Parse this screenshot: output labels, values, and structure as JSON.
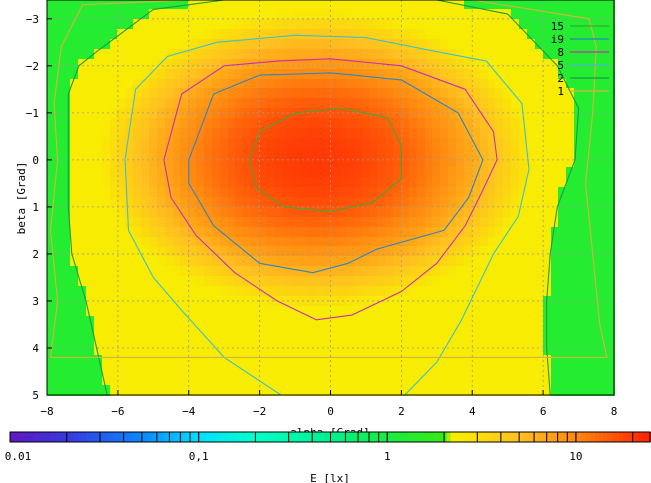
{
  "chart_data": {
    "type": "heatmap",
    "title": "",
    "xlabel": "alpha [Grad]",
    "ylabel": "beta [Grad]",
    "xlim": [
      -8,
      8
    ],
    "ylim": [
      -3.4,
      5
    ],
    "y_inverted": true,
    "x_ticks": [
      -8,
      -6,
      -4,
      -2,
      0,
      2,
      4,
      6,
      8
    ],
    "y_ticks": [
      -3,
      -2,
      -1,
      0,
      1,
      2,
      3,
      4,
      5
    ],
    "grid": true,
    "legend": {
      "position": "top-right",
      "title": ""
    },
    "contours": [
      {
        "level": "15",
        "color": "#43a637",
        "points": [
          [
            -2.3,
            0.0
          ],
          [
            -2.0,
            -0.6
          ],
          [
            -1.0,
            -1.0
          ],
          [
            0.3,
            -1.1
          ],
          [
            1.6,
            -0.9
          ],
          [
            2.0,
            -0.3
          ],
          [
            2.0,
            0.4
          ],
          [
            1.2,
            0.9
          ],
          [
            0.0,
            1.1
          ],
          [
            -1.3,
            1.0
          ],
          [
            -2.1,
            0.6
          ],
          [
            -2.3,
            0.0
          ]
        ]
      },
      {
        "level": "i9",
        "color": "#2f83c4",
        "points": [
          [
            -4.0,
            0.0
          ],
          [
            -3.3,
            -1.4
          ],
          [
            -2.0,
            -1.8
          ],
          [
            0.0,
            -1.85
          ],
          [
            2.0,
            -1.7
          ],
          [
            3.6,
            -1.0
          ],
          [
            4.3,
            0.0
          ],
          [
            3.9,
            0.8
          ],
          [
            3.2,
            1.5
          ],
          [
            1.3,
            1.9
          ],
          [
            0.5,
            2.2
          ],
          [
            -0.5,
            2.4
          ],
          [
            -2.0,
            2.2
          ],
          [
            -3.3,
            1.4
          ],
          [
            -4.0,
            0.5
          ],
          [
            -4.0,
            0.0
          ]
        ]
      },
      {
        "level": "8",
        "color": "#c82fb2",
        "points": [
          [
            -4.7,
            0.0
          ],
          [
            -4.2,
            -1.4
          ],
          [
            -3.0,
            -2.0
          ],
          [
            -1.5,
            -2.1
          ],
          [
            0.0,
            -2.15
          ],
          [
            2.0,
            -2.0
          ],
          [
            3.8,
            -1.5
          ],
          [
            4.6,
            -0.6
          ],
          [
            4.7,
            0.0
          ],
          [
            4.2,
            0.8
          ],
          [
            3.8,
            1.4
          ],
          [
            3.0,
            2.2
          ],
          [
            2.0,
            2.8
          ],
          [
            0.6,
            3.3
          ],
          [
            -0.4,
            3.4
          ],
          [
            -1.5,
            3.0
          ],
          [
            -2.7,
            2.4
          ],
          [
            -3.8,
            1.6
          ],
          [
            -4.5,
            0.8
          ],
          [
            -4.7,
            0.0
          ]
        ]
      },
      {
        "level": "5",
        "color": "#3fc0c8",
        "points": [
          [
            -5.8,
            0.0
          ],
          [
            -5.5,
            -1.5
          ],
          [
            -4.6,
            -2.2
          ],
          [
            -3.2,
            -2.5
          ],
          [
            -1.0,
            -2.65
          ],
          [
            1.0,
            -2.6
          ],
          [
            3.0,
            -2.3
          ],
          [
            4.4,
            -2.1
          ],
          [
            5.4,
            -1.2
          ],
          [
            5.6,
            0.2
          ],
          [
            5.3,
            1.2
          ],
          [
            4.6,
            2.0
          ],
          [
            3.7,
            3.4
          ],
          [
            3.0,
            4.3
          ],
          [
            2.1,
            5.0
          ],
          [
            -1.4,
            5.0
          ],
          [
            -3.0,
            4.2
          ],
          [
            -4.2,
            3.2
          ],
          [
            -5.0,
            2.5
          ],
          [
            -5.7,
            1.5
          ],
          [
            -5.8,
            0.0
          ]
        ]
      },
      {
        "level": "2",
        "color": "#1f9a40",
        "points": [
          [
            -7.4,
            -1.4
          ],
          [
            -7.1,
            -2.0
          ],
          [
            -6.6,
            -2.3
          ],
          [
            -5.0,
            -3.2
          ],
          [
            -3.0,
            -3.4
          ],
          [
            3.0,
            -3.4
          ],
          [
            5.0,
            -3.1
          ],
          [
            6.4,
            -2.0
          ],
          [
            7.0,
            -1.1
          ],
          [
            6.9,
            0.0
          ],
          [
            6.4,
            1.0
          ],
          [
            6.2,
            2.0
          ],
          [
            6.1,
            3.0
          ],
          [
            6.1,
            4.0
          ],
          [
            6.2,
            5.0
          ],
          [
            -6.3,
            5.0
          ],
          [
            -6.6,
            4.0
          ],
          [
            -6.9,
            3.0
          ],
          [
            -7.3,
            2.0
          ],
          [
            -7.4,
            1.0
          ],
          [
            -7.4,
            0.0
          ],
          [
            -7.4,
            -1.4
          ]
        ]
      },
      {
        "level": "1",
        "color": "#d8b23a",
        "points": [
          [
            -7.6,
            -2.4
          ],
          [
            -7.0,
            -3.3
          ],
          [
            -4.0,
            -3.4
          ],
          [
            4.0,
            -3.4
          ],
          [
            7.3,
            -3.0
          ],
          [
            7.5,
            -2.4
          ],
          [
            7.4,
            -1.0
          ],
          [
            7.2,
            0.5
          ],
          [
            7.4,
            2.0
          ],
          [
            7.6,
            3.5
          ],
          [
            7.8,
            4.2
          ],
          [
            -7.9,
            4.2
          ],
          [
            -7.7,
            3.0
          ],
          [
            -7.9,
            1.5
          ],
          [
            -7.7,
            0.0
          ],
          [
            -7.8,
            -1.2
          ],
          [
            -7.6,
            -2.4
          ]
        ]
      }
    ],
    "colorbar": {
      "label": "E [lx]",
      "scale": "log",
      "range": [
        0.01,
        25
      ],
      "ticks": [
        {
          "value": 0.01,
          "label": "0.01"
        },
        {
          "value": 0.1,
          "label": "0,1"
        },
        {
          "value": 1,
          "label": "1"
        },
        {
          "value": 10,
          "label": "10"
        }
      ],
      "stops": [
        {
          "value": 0.01,
          "color": "#6018c0"
        },
        {
          "value": 0.02,
          "color": "#3838e0"
        },
        {
          "value": 0.05,
          "color": "#0a88ff"
        },
        {
          "value": 0.1,
          "color": "#00e0ff"
        },
        {
          "value": 0.2,
          "color": "#00ffc8"
        },
        {
          "value": 0.5,
          "color": "#00f090"
        },
        {
          "value": 1,
          "color": "#18ee40"
        },
        {
          "value": 2,
          "color": "#38e818"
        },
        {
          "value": 2.2,
          "color": "#f8f000"
        },
        {
          "value": 5,
          "color": "#ffc020"
        },
        {
          "value": 10,
          "color": "#ff8810"
        },
        {
          "value": 25,
          "color": "#ff2000"
        }
      ]
    },
    "field_model": {
      "peak": 20,
      "center": [
        -0.4,
        0.0
      ],
      "scale_x": 6.2,
      "scale_y": 3.2,
      "outside": 1.3,
      "shape_power": 2.2
    }
  }
}
